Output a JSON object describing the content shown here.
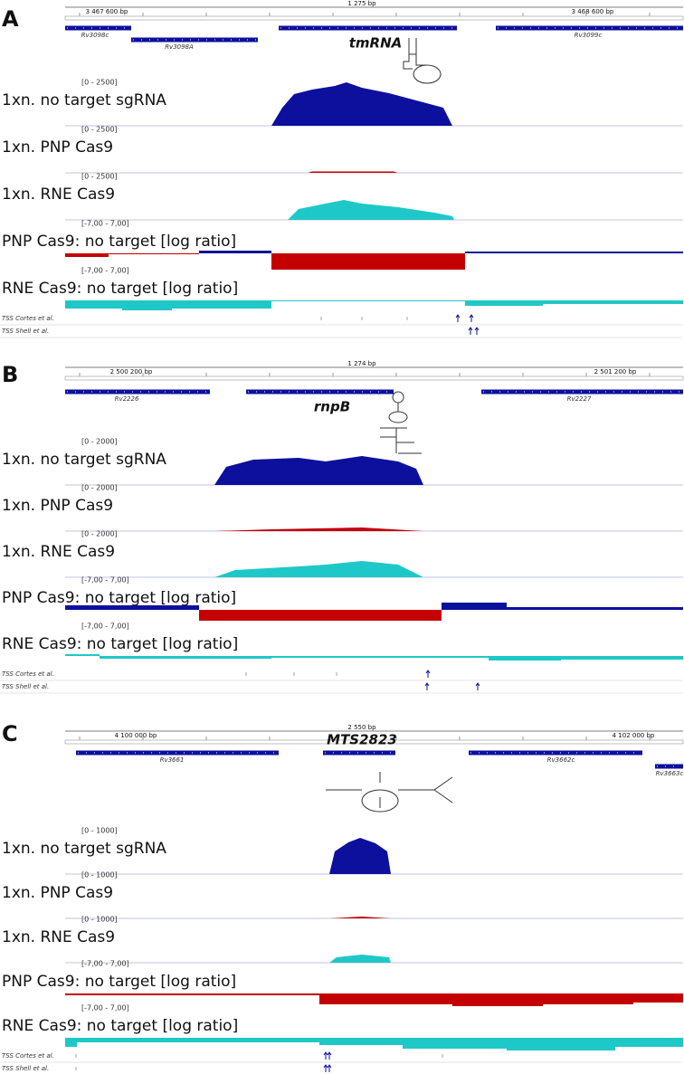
{
  "panels": [
    {
      "letter": "A",
      "ruler": {
        "span": "1 275 bp",
        "ticks": [
          "3 467 600 bp",
          "3 468 600 bp"
        ]
      },
      "genes": [
        "Rv3098c",
        "Rv3098A",
        "Rv3099c"
      ],
      "rna": "tmRNA",
      "tracks": [
        {
          "range": "[0 - 2500]",
          "label": "1xn. no target sgRNA"
        },
        {
          "range": "[0 - 2500]",
          "label": "1xn.  PNP Cas9"
        },
        {
          "range": "[0 - 2500]",
          "label": "1xn.  RNE Cas9"
        },
        {
          "range": "[-7,00 - 7,00]",
          "label": "PNP Cas9: no target [log ratio]"
        },
        {
          "range": "[-7,00 - 7,00]",
          "label": "RNE Cas9: no target [log ratio]"
        }
      ],
      "tss": [
        "TSS Cortes et al.",
        "TSS Shell et al."
      ]
    },
    {
      "letter": "B",
      "ruler": {
        "span": "1 274 bp",
        "ticks": [
          "2 500 200 bp",
          "2 501 200 bp"
        ]
      },
      "genes": [
        "Rv2226",
        "Rv2227"
      ],
      "rna": "rnpB",
      "tracks": [
        {
          "range": "[0 - 2000]",
          "label": "1xn. no target sgRNA"
        },
        {
          "range": "[0 - 2000]",
          "label": "1xn.  PNP Cas9"
        },
        {
          "range": "[0 - 2000]",
          "label": "1xn.  RNE Cas9"
        },
        {
          "range": "[-7,00 - 7,00]",
          "label": "PNP Cas9: no target [log ratio]"
        },
        {
          "range": "[-7,00 - 7,00]",
          "label": "RNE Cas9: no target [log ratio]"
        }
      ],
      "tss": [
        "TSS Cortes et al.",
        "TSS Shell et al."
      ]
    },
    {
      "letter": "C",
      "ruler": {
        "span": "2 550 bp",
        "ticks": [
          "4 100 000 bp",
          "4 102 000 bp"
        ]
      },
      "genes": [
        "Rv3661",
        "Rv3662c",
        "Rv3663c"
      ],
      "rna": "MTS2823",
      "tracks": [
        {
          "range": "[0 - 1000]",
          "label": "1xn. no target sgRNA"
        },
        {
          "range": "[0 - 1000]",
          "label": "1xn.  PNP Cas9"
        },
        {
          "range": "[0 - 1000]",
          "label": "1xn.  RNE Cas9"
        },
        {
          "range": "[-7,00 - 7,00]",
          "label": "PNP Cas9: no target [log ratio]"
        },
        {
          "range": "[-7,00 - 7,00]",
          "label": "RNE Cas9: no target [log ratio]"
        }
      ],
      "tss": [
        "TSS Cortes et al.",
        "TSS Shell et al."
      ]
    }
  ]
}
